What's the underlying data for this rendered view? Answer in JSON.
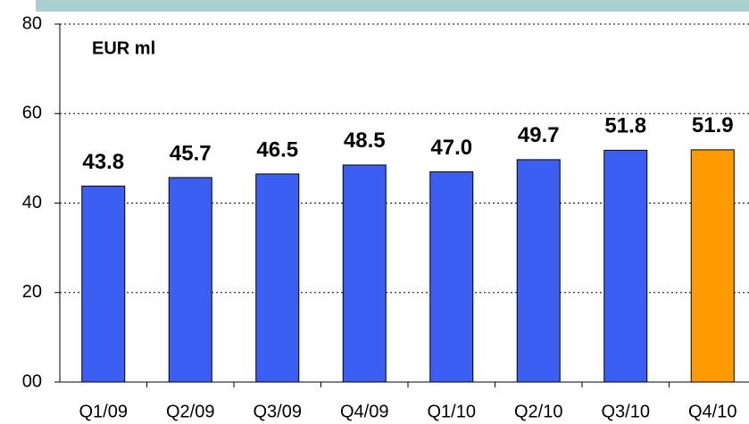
{
  "chart_data": {
    "type": "bar",
    "unit_label": "EUR ml",
    "categories": [
      "Q1/09",
      "Q2/09",
      "Q3/09",
      "Q4/09",
      "Q1/10",
      "Q2/10",
      "Q3/10",
      "Q4/10"
    ],
    "values": [
      43.8,
      45.7,
      46.5,
      48.5,
      47.0,
      49.7,
      51.8,
      51.9
    ],
    "value_labels": [
      "43.8",
      "45.7",
      "46.5",
      "48.5",
      "47.0",
      "49.7",
      "51.8",
      "51.9"
    ],
    "colors": [
      "#3a5ff2",
      "#3a5ff2",
      "#3a5ff2",
      "#3a5ff2",
      "#3a5ff2",
      "#3a5ff2",
      "#3a5ff2",
      "#ff9a00"
    ],
    "ylim": [
      0,
      80
    ],
    "yticks": [
      {
        "value": 0,
        "label": "00"
      },
      20,
      40,
      60,
      80
    ],
    "grid": true
  }
}
